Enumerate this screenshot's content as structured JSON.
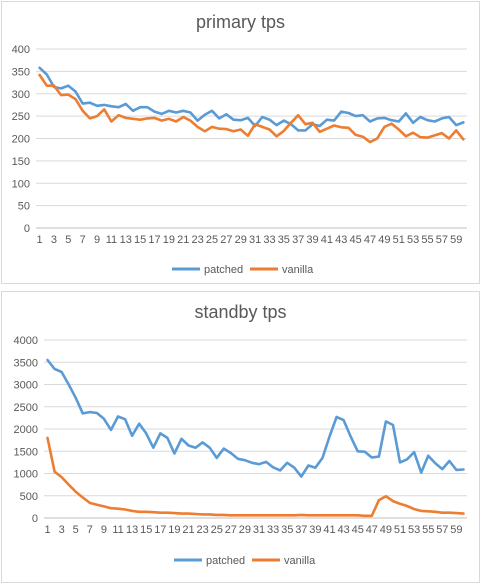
{
  "chart_data": [
    {
      "type": "line",
      "title": "primary tps",
      "xlabel": "",
      "ylabel": "",
      "ylim": [
        0,
        400
      ],
      "yticks": [
        0,
        50,
        100,
        150,
        200,
        250,
        300,
        350,
        400
      ],
      "xtick_labels": [
        "1",
        "3",
        "5",
        "7",
        "9",
        "11",
        "13",
        "15",
        "17",
        "19",
        "21",
        "23",
        "25",
        "27",
        "29",
        "31",
        "33",
        "35",
        "37",
        "39",
        "41",
        "43",
        "45",
        "47",
        "49",
        "51",
        "53",
        "55",
        "57",
        "59"
      ],
      "grid": true,
      "legend_position": "bottom",
      "series": [
        {
          "name": "patched",
          "color": "#5b9bd5",
          "values": [
            358,
            343,
            315,
            312,
            318,
            305,
            278,
            280,
            273,
            275,
            272,
            270,
            277,
            262,
            270,
            270,
            260,
            255,
            262,
            258,
            262,
            258,
            240,
            253,
            262,
            245,
            254,
            242,
            241,
            246,
            228,
            248,
            242,
            230,
            240,
            232,
            218,
            218,
            232,
            228,
            242,
            240,
            260,
            257,
            250,
            252,
            238,
            245,
            246,
            241,
            238,
            256,
            235,
            248,
            241,
            238,
            245,
            248,
            230,
            236
          ]
        },
        {
          "name": "vanilla",
          "color": "#ed7d31",
          "values": [
            342,
            318,
            318,
            297,
            298,
            288,
            262,
            245,
            250,
            265,
            238,
            252,
            246,
            244,
            242,
            245,
            246,
            240,
            244,
            238,
            248,
            240,
            226,
            216,
            226,
            222,
            221,
            216,
            220,
            206,
            232,
            226,
            220,
            205,
            217,
            235,
            252,
            232,
            235,
            215,
            222,
            229,
            225,
            224,
            208,
            204,
            192,
            200,
            226,
            233,
            220,
            205,
            213,
            203,
            202,
            207,
            212,
            200,
            218,
            198
          ]
        }
      ]
    },
    {
      "type": "line",
      "title": "standby tps",
      "xlabel": "",
      "ylabel": "",
      "ylim": [
        0,
        4000
      ],
      "yticks": [
        0,
        500,
        1000,
        1500,
        2000,
        2500,
        3000,
        3500,
        4000
      ],
      "xtick_labels": [
        "1",
        "3",
        "5",
        "7",
        "9",
        "11",
        "13",
        "15",
        "17",
        "19",
        "21",
        "23",
        "25",
        "27",
        "29",
        "31",
        "33",
        "35",
        "37",
        "39",
        "41",
        "43",
        "45",
        "47",
        "49",
        "51",
        "53",
        "55",
        "57",
        "59"
      ],
      "grid": true,
      "legend_position": "bottom",
      "series": [
        {
          "name": "patched",
          "color": "#5b9bd5",
          "values": [
            3550,
            3350,
            3280,
            3000,
            2700,
            2350,
            2380,
            2360,
            2230,
            1980,
            2280,
            2220,
            1850,
            2120,
            1900,
            1580,
            1900,
            1800,
            1450,
            1780,
            1630,
            1580,
            1700,
            1580,
            1350,
            1560,
            1460,
            1330,
            1300,
            1240,
            1210,
            1260,
            1140,
            1070,
            1240,
            1130,
            930,
            1180,
            1130,
            1350,
            1830,
            2270,
            2200,
            1830,
            1500,
            1490,
            1360,
            1380,
            2170,
            2090,
            1250,
            1320,
            1480,
            1020,
            1400,
            1230,
            1100,
            1280,
            1080,
            1090
          ]
        },
        {
          "name": "vanilla",
          "color": "#ed7d31",
          "values": [
            1800,
            1040,
            920,
            750,
            590,
            460,
            340,
            300,
            260,
            220,
            210,
            190,
            160,
            140,
            140,
            130,
            120,
            120,
            110,
            100,
            100,
            90,
            80,
            80,
            70,
            70,
            60,
            60,
            60,
            60,
            60,
            60,
            60,
            60,
            60,
            60,
            70,
            60,
            60,
            60,
            60,
            60,
            60,
            60,
            60,
            50,
            50,
            400,
            490,
            380,
            320,
            270,
            200,
            160,
            150,
            140,
            120,
            120,
            110,
            100
          ]
        }
      ]
    }
  ]
}
